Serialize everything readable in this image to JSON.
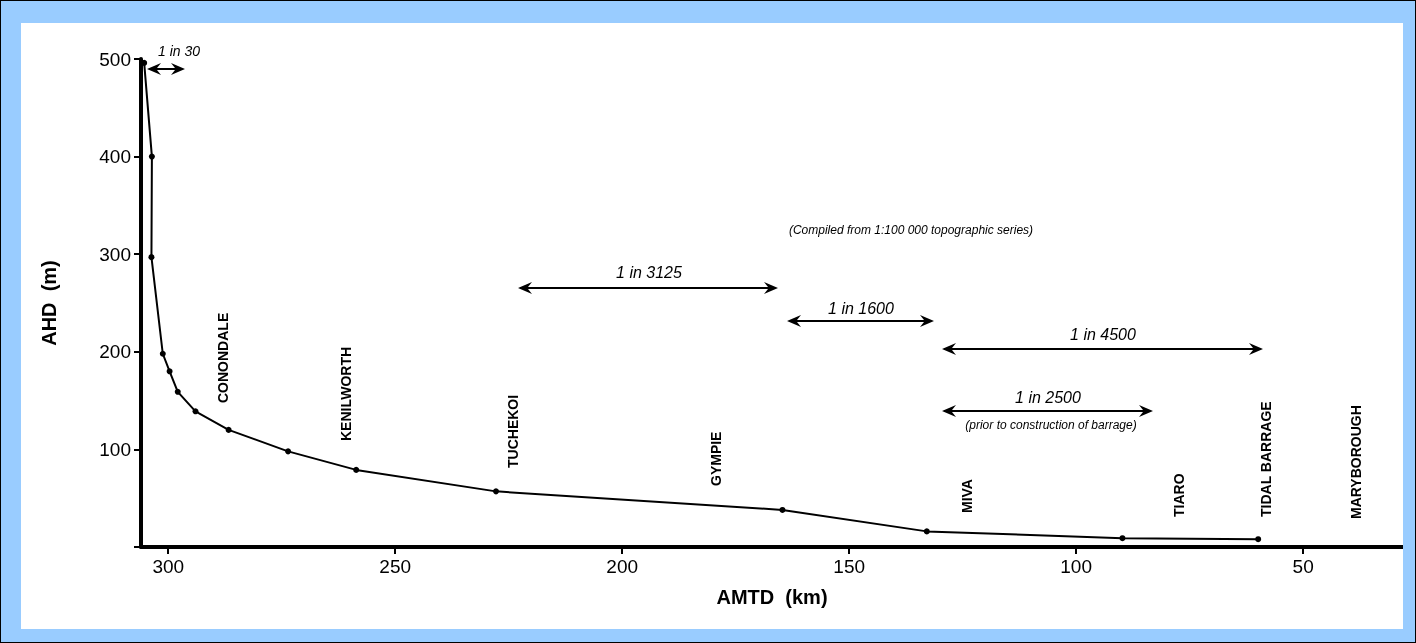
{
  "chart_data": {
    "type": "line",
    "xlabel": "AMTD  (km)",
    "ylabel": "AHD  (m)",
    "x": [
      305.3,
      303.6,
      303.7,
      301.2,
      299.7,
      297.9,
      294.0,
      286.7,
      273.6,
      258.6,
      227.8,
      164.7,
      132.9,
      89.8,
      59.9
    ],
    "series": [
      {
        "color": "#000000",
        "values": [
          496,
          400,
          297,
          198,
          180,
          159,
          139,
          120,
          98,
          79,
          57,
          38,
          16,
          9,
          8
        ]
      }
    ],
    "xlim": [
      306,
      28
    ],
    "xticks": [
      300,
      250,
      200,
      150,
      100,
      50
    ],
    "ylim": [
      0,
      500
    ],
    "yticks": [
      {
        "value": 0,
        "label": null
      },
      100,
      200,
      300,
      400,
      500
    ],
    "grid": false,
    "marker": "circle",
    "line_style": "solid",
    "annotations": [
      "1 in 30",
      "1 in 3125",
      "1 in 1600",
      "1 in 4500",
      "1 in 2500",
      "(prior to construction of barrage)",
      "(Compiled from 1:100 000 topographic series)",
      "CONONDALE",
      "KENILWORTH",
      "TUCHEKOI",
      "GYMPIE",
      "MIVA",
      "TIARO",
      "TIDAL BARRAGE",
      "MARYBOROUGH"
    ]
  }
}
